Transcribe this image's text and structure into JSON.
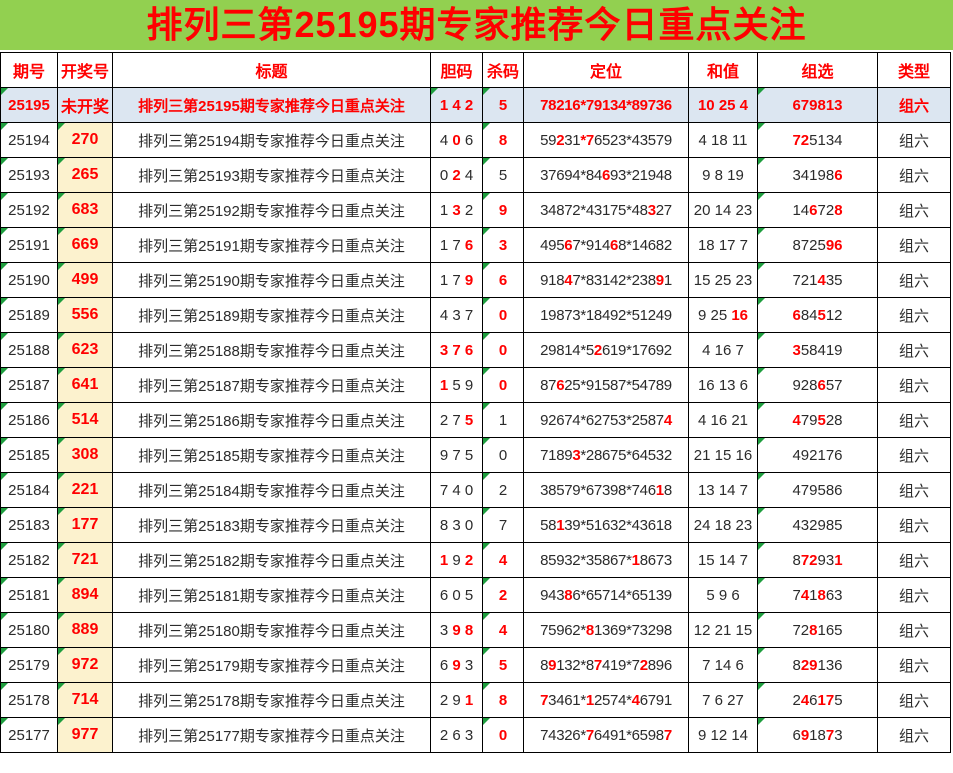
{
  "banner": {
    "title": "排列三第25195期专家推荐今日重点关注"
  },
  "colors": {
    "banner_bg": "#92D050",
    "banner_text": "#FF0000",
    "highlight_row_bg": "#DCE6F1",
    "draw_cell_bg": "#FCF2CE",
    "accent_red": "#FF0000",
    "body_text": "#2B2B2B",
    "corner_triangle": "#1E9E3E"
  },
  "table": {
    "columns": [
      "期号",
      "开奖号",
      "标题",
      "胆码",
      "杀码",
      "定位",
      "和值",
      "组选",
      "类型"
    ],
    "rows": [
      {
        "issue": "25195",
        "draw": "未开奖",
        "title": "排列三第25195期专家推荐今日重点关注",
        "dan": [
          [
            "1 4 2",
            1
          ]
        ],
        "kill": [
          [
            "5",
            1
          ]
        ],
        "pos": [
          [
            "78216*79134*89736",
            1
          ]
        ],
        "sum": [
          [
            "10 25 4",
            1
          ]
        ],
        "group": [
          [
            "679813",
            1
          ]
        ],
        "type": "组六",
        "hl": true,
        "tri": [
          0,
          3,
          4,
          7
        ]
      },
      {
        "issue": "25194",
        "draw": "270",
        "title": "排列三第25194期专家推荐今日重点关注",
        "dan": [
          [
            "4 ",
            0
          ],
          [
            "0",
            1
          ],
          [
            " 6",
            0
          ]
        ],
        "kill": [
          [
            "8",
            1
          ]
        ],
        "pos": [
          [
            "59",
            0
          ],
          [
            "2",
            1
          ],
          [
            "31",
            0
          ],
          [
            "*7",
            1
          ],
          [
            "6523*43579",
            0
          ]
        ],
        "sum": [
          [
            "4 18 11",
            0
          ]
        ],
        "group": [
          [
            "72",
            1
          ],
          [
            "5134",
            0
          ]
        ],
        "type": "组六",
        "tri": [
          0,
          1,
          4,
          7
        ]
      },
      {
        "issue": "25193",
        "draw": "265",
        "title": "排列三第25193期专家推荐今日重点关注",
        "dan": [
          [
            "0 ",
            0
          ],
          [
            "2",
            1
          ],
          [
            " 4",
            0
          ]
        ],
        "kill": [
          [
            "5",
            0
          ]
        ],
        "pos": [
          [
            "37694*84",
            0
          ],
          [
            "6",
            1
          ],
          [
            "93*21948",
            0
          ]
        ],
        "sum": [
          [
            "9 8 19",
            0
          ]
        ],
        "group": [
          [
            "34198",
            0
          ],
          [
            "6",
            1
          ]
        ],
        "type": "组六",
        "tri": [
          0,
          1,
          4,
          7
        ]
      },
      {
        "issue": "25192",
        "draw": "683",
        "title": "排列三第25192期专家推荐今日重点关注",
        "dan": [
          [
            "1 ",
            0
          ],
          [
            "3",
            1
          ],
          [
            " 2",
            0
          ]
        ],
        "kill": [
          [
            "9",
            1
          ]
        ],
        "pos": [
          [
            "34872*43175*48",
            0
          ],
          [
            "3",
            1
          ],
          [
            "27",
            0
          ]
        ],
        "sum": [
          [
            "20 14 23",
            0
          ]
        ],
        "group": [
          [
            "14",
            0
          ],
          [
            "6",
            1
          ],
          [
            "72",
            0
          ],
          [
            "8",
            1
          ]
        ],
        "type": "组六",
        "tri": [
          0,
          1,
          4,
          7
        ]
      },
      {
        "issue": "25191",
        "draw": "669",
        "title": "排列三第25191期专家推荐今日重点关注",
        "dan": [
          [
            "1 7 ",
            0
          ],
          [
            "6",
            1
          ]
        ],
        "kill": [
          [
            "3",
            1
          ]
        ],
        "pos": [
          [
            "495",
            0
          ],
          [
            "6",
            1
          ],
          [
            "7*914",
            0
          ],
          [
            "6",
            1
          ],
          [
            "8*14682",
            0
          ]
        ],
        "sum": [
          [
            "18 17 7",
            0
          ]
        ],
        "group": [
          [
            "8725",
            0
          ],
          [
            "96",
            1
          ]
        ],
        "type": "组六",
        "tri": [
          0,
          1,
          4,
          7
        ]
      },
      {
        "issue": "25190",
        "draw": "499",
        "title": "排列三第25190期专家推荐今日重点关注",
        "dan": [
          [
            "1 7 ",
            0
          ],
          [
            "9",
            1
          ]
        ],
        "kill": [
          [
            "6",
            1
          ]
        ],
        "pos": [
          [
            "918",
            0
          ],
          [
            "4",
            1
          ],
          [
            "7*83142*238",
            0
          ],
          [
            "9",
            1
          ],
          [
            "1",
            0
          ]
        ],
        "sum": [
          [
            "15 25 23",
            0
          ]
        ],
        "group": [
          [
            "721",
            0
          ],
          [
            "4",
            1
          ],
          [
            "35",
            0
          ]
        ],
        "type": "组六",
        "tri": [
          0,
          1,
          4,
          7
        ]
      },
      {
        "issue": "25189",
        "draw": "556",
        "title": "排列三第25189期专家推荐今日重点关注",
        "dan": [
          [
            "4 3 7",
            0
          ]
        ],
        "kill": [
          [
            "0",
            1
          ]
        ],
        "pos": [
          [
            "19873*18492*51249",
            0
          ]
        ],
        "sum": [
          [
            "9 25 ",
            0
          ],
          [
            "16",
            1
          ]
        ],
        "group": [
          [
            "6",
            1
          ],
          [
            "84",
            0
          ],
          [
            "5",
            1
          ],
          [
            "12",
            0
          ]
        ],
        "type": "组六",
        "tri": [
          0,
          1,
          4,
          7
        ]
      },
      {
        "issue": "25188",
        "draw": "623",
        "title": "排列三第25188期专家推荐今日重点关注",
        "dan": [
          [
            "3 7 6",
            1
          ]
        ],
        "kill": [
          [
            "0",
            1
          ]
        ],
        "pos": [
          [
            "29814*5",
            0
          ],
          [
            "2",
            1
          ],
          [
            "619*17692",
            0
          ]
        ],
        "sum": [
          [
            "4 16 7",
            0
          ]
        ],
        "group": [
          [
            "3",
            1
          ],
          [
            "58419",
            0
          ]
        ],
        "type": "组六",
        "tri": [
          0,
          1,
          4,
          7
        ]
      },
      {
        "issue": "25187",
        "draw": "641",
        "title": "排列三第25187期专家推荐今日重点关注",
        "dan": [
          [
            "1",
            1
          ],
          [
            " 5 9",
            0
          ]
        ],
        "kill": [
          [
            "0",
            1
          ]
        ],
        "pos": [
          [
            "87",
            0
          ],
          [
            "6",
            1
          ],
          [
            "25*91587*54789",
            0
          ]
        ],
        "sum": [
          [
            "16 13 6",
            0
          ]
        ],
        "group": [
          [
            "928",
            0
          ],
          [
            "6",
            1
          ],
          [
            "57",
            0
          ]
        ],
        "type": "组六",
        "tri": [
          0,
          1,
          4,
          7
        ]
      },
      {
        "issue": "25186",
        "draw": "514",
        "title": "排列三第25186期专家推荐今日重点关注",
        "dan": [
          [
            "2 7 ",
            0
          ],
          [
            "5",
            1
          ]
        ],
        "kill": [
          [
            "1",
            0
          ]
        ],
        "pos": [
          [
            "92674*62753*2587",
            0
          ],
          [
            "4",
            1
          ]
        ],
        "sum": [
          [
            "4 16 21",
            0
          ]
        ],
        "group": [
          [
            "4",
            1
          ],
          [
            "79",
            0
          ],
          [
            "5",
            1
          ],
          [
            "28",
            0
          ]
        ],
        "type": "组六",
        "tri": [
          0,
          1,
          4,
          7
        ]
      },
      {
        "issue": "25185",
        "draw": "308",
        "title": "排列三第25185期专家推荐今日重点关注",
        "dan": [
          [
            "9 7 5",
            0
          ]
        ],
        "kill": [
          [
            "0",
            0
          ]
        ],
        "pos": [
          [
            "7189",
            0
          ],
          [
            "3",
            1
          ],
          [
            "*28675*64532",
            0
          ]
        ],
        "sum": [
          [
            "21 15 16",
            0
          ]
        ],
        "group": [
          [
            "492176",
            0
          ]
        ],
        "type": "组六",
        "tri": [
          0,
          1,
          4,
          7
        ]
      },
      {
        "issue": "25184",
        "draw": "221",
        "title": "排列三第25184期专家推荐今日重点关注",
        "dan": [
          [
            "7 4 0",
            0
          ]
        ],
        "kill": [
          [
            "2",
            0
          ]
        ],
        "pos": [
          [
            "38579*67398*746",
            0
          ],
          [
            "1",
            1
          ],
          [
            "8",
            0
          ]
        ],
        "sum": [
          [
            "13 14 7",
            0
          ]
        ],
        "group": [
          [
            "479586",
            0
          ]
        ],
        "type": "组六",
        "tri": [
          0,
          1,
          4,
          7
        ]
      },
      {
        "issue": "25183",
        "draw": "177",
        "title": "排列三第25183期专家推荐今日重点关注",
        "dan": [
          [
            "8 3 0",
            0
          ]
        ],
        "kill": [
          [
            "7",
            0
          ]
        ],
        "pos": [
          [
            "58",
            0
          ],
          [
            "1",
            1
          ],
          [
            "39*51632*43618",
            0
          ]
        ],
        "sum": [
          [
            "24 18 23",
            0
          ]
        ],
        "group": [
          [
            "432985",
            0
          ]
        ],
        "type": "组六",
        "tri": [
          0,
          1,
          4,
          7
        ]
      },
      {
        "issue": "25182",
        "draw": "721",
        "title": "排列三第25182期专家推荐今日重点关注",
        "dan": [
          [
            "1",
            1
          ],
          [
            " 9 ",
            0
          ],
          [
            "2",
            1
          ]
        ],
        "kill": [
          [
            "4",
            1
          ]
        ],
        "pos": [
          [
            "85932*35867*",
            0
          ],
          [
            "1",
            1
          ],
          [
            "8673",
            0
          ]
        ],
        "sum": [
          [
            "15 14 7",
            0
          ]
        ],
        "group": [
          [
            "8",
            0
          ],
          [
            "72",
            1
          ],
          [
            "93",
            0
          ],
          [
            "1",
            1
          ]
        ],
        "type": "组六",
        "tri": [
          0,
          1,
          4,
          7
        ]
      },
      {
        "issue": "25181",
        "draw": "894",
        "title": "排列三第25181期专家推荐今日重点关注",
        "dan": [
          [
            "6 0 5",
            0
          ]
        ],
        "kill": [
          [
            "2",
            1
          ]
        ],
        "pos": [
          [
            "943",
            0
          ],
          [
            "8",
            1
          ],
          [
            "6*65714*65139",
            0
          ]
        ],
        "sum": [
          [
            "5 9 6",
            0
          ]
        ],
        "group": [
          [
            "7",
            0
          ],
          [
            "4",
            1
          ],
          [
            "1",
            0
          ],
          [
            "8",
            1
          ],
          [
            "63",
            0
          ]
        ],
        "type": "组六",
        "tri": [
          0,
          1,
          4,
          7
        ]
      },
      {
        "issue": "25180",
        "draw": "889",
        "title": "排列三第25180期专家推荐今日重点关注",
        "dan": [
          [
            "3 ",
            0
          ],
          [
            "9 8",
            1
          ]
        ],
        "kill": [
          [
            "4",
            1
          ]
        ],
        "pos": [
          [
            "75962*",
            0
          ],
          [
            "8",
            1
          ],
          [
            "1369*73298",
            0
          ]
        ],
        "sum": [
          [
            "12 21 15",
            0
          ]
        ],
        "group": [
          [
            "72",
            0
          ],
          [
            "8",
            1
          ],
          [
            "165",
            0
          ]
        ],
        "type": "组六",
        "tri": [
          0,
          1,
          4,
          7
        ]
      },
      {
        "issue": "25179",
        "draw": "972",
        "title": "排列三第25179期专家推荐今日重点关注",
        "dan": [
          [
            "6 ",
            0
          ],
          [
            "9",
            1
          ],
          [
            " 3",
            0
          ]
        ],
        "kill": [
          [
            "5",
            1
          ]
        ],
        "pos": [
          [
            "8",
            0
          ],
          [
            "9",
            1
          ],
          [
            "132*8",
            0
          ],
          [
            "7",
            1
          ],
          [
            "419*7",
            0
          ],
          [
            "2",
            1
          ],
          [
            "896",
            0
          ]
        ],
        "sum": [
          [
            "7 14 6",
            0
          ]
        ],
        "group": [
          [
            "8",
            0
          ],
          [
            "29",
            1
          ],
          [
            "136",
            0
          ]
        ],
        "type": "组六",
        "tri": [
          0,
          1,
          4,
          7
        ]
      },
      {
        "issue": "25178",
        "draw": "714",
        "title": "排列三第25178期专家推荐今日重点关注",
        "dan": [
          [
            "2 9 ",
            0
          ],
          [
            "1",
            1
          ]
        ],
        "kill": [
          [
            "8",
            1
          ]
        ],
        "pos": [
          [
            "7",
            1
          ],
          [
            "3461*",
            0
          ],
          [
            "1",
            1
          ],
          [
            "2574*",
            0
          ],
          [
            "4",
            1
          ],
          [
            "6791",
            0
          ]
        ],
        "sum": [
          [
            "7 6 27",
            0
          ]
        ],
        "group": [
          [
            "2",
            0
          ],
          [
            "4",
            1
          ],
          [
            "6",
            0
          ],
          [
            "17",
            1
          ],
          [
            "5",
            0
          ]
        ],
        "type": "组六",
        "tri": [
          0,
          1,
          4,
          7
        ]
      },
      {
        "issue": "25177",
        "draw": "977",
        "title": "排列三第25177期专家推荐今日重点关注",
        "dan": [
          [
            "2 6 3",
            0
          ]
        ],
        "kill": [
          [
            "0",
            1
          ]
        ],
        "pos": [
          [
            "74326*",
            0
          ],
          [
            "7",
            1
          ],
          [
            "6491*6598",
            0
          ],
          [
            "7",
            1
          ]
        ],
        "sum": [
          [
            "9 12 14",
            0
          ]
        ],
        "group": [
          [
            "6",
            0
          ],
          [
            "9",
            1
          ],
          [
            "18",
            0
          ],
          [
            "7",
            1
          ],
          [
            "3",
            0
          ]
        ],
        "type": "组六",
        "tri": [
          0,
          1,
          4,
          7
        ]
      }
    ]
  }
}
